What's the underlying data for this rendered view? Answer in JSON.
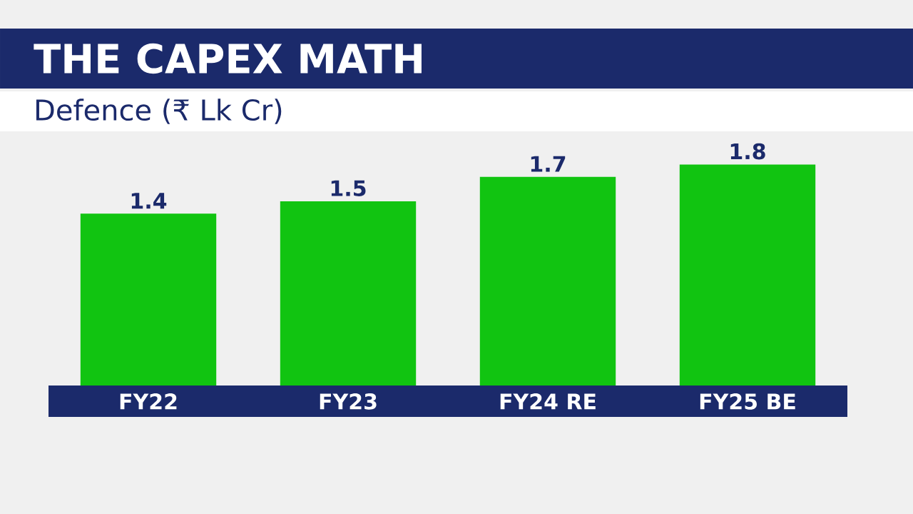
{
  "chart_data": {
    "type": "bar",
    "title": "THE CAPEX MATH",
    "subtitle": "Defence (₹ Lk Cr)",
    "categories": [
      "FY22",
      "FY23",
      "FY24 RE",
      "FY25 BE"
    ],
    "values": [
      1.4,
      1.5,
      1.7,
      1.8
    ],
    "color": "#11c411",
    "data_labels": true
  }
}
